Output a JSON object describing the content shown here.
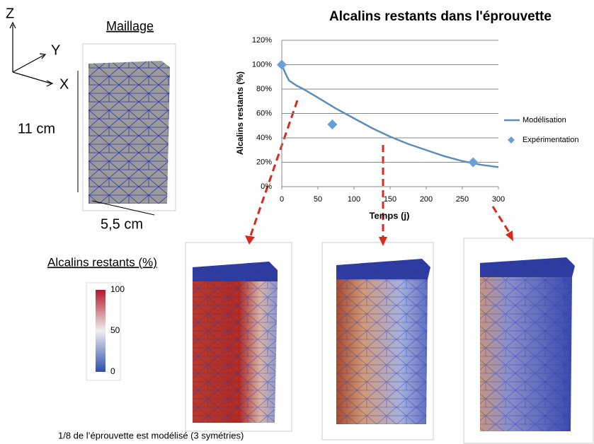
{
  "chart_data": {
    "type": "line",
    "title": "Alcalins restants dans l'éprouvette",
    "x_label": "Temps (j)",
    "y_label": "Alcalins restants (%)",
    "xlim": [
      0,
      300
    ],
    "xticks": [
      0,
      50,
      100,
      150,
      200,
      250,
      300
    ],
    "ylim": [
      0,
      120
    ],
    "yticks": [
      {
        "value": 0,
        "label": "0%"
      },
      {
        "value": 20,
        "label": "20%"
      },
      {
        "value": 40,
        "label": "40%"
      },
      {
        "value": 60,
        "label": "60%"
      },
      {
        "value": 80,
        "label": "80%"
      },
      {
        "value": 100,
        "label": "100%"
      },
      {
        "value": 120,
        "label": "120%"
      }
    ],
    "grid": true,
    "series": [
      {
        "name": "Modélisation",
        "color": "#5b8db8",
        "mode": "line",
        "x": [
          0,
          5,
          10,
          20,
          30,
          50,
          75,
          100,
          125,
          150,
          175,
          200,
          225,
          250,
          275,
          300
        ],
        "values": [
          100,
          93,
          87,
          83,
          80,
          73,
          64,
          56,
          48,
          41,
          35,
          30,
          25,
          21,
          18,
          16
        ]
      },
      {
        "name": "Expérimentation",
        "color": "#6a9fd4",
        "mode": "markers",
        "x": [
          0,
          70,
          265
        ],
        "values": [
          100,
          51,
          20
        ]
      }
    ]
  },
  "labels": {
    "axis_z": "Z",
    "axis_y": "Y",
    "axis_x": "X",
    "mesh_title": "Maillage",
    "height": "11 cm",
    "width": "5,5 cm",
    "colorbar_title": "Alcalins restants (%)",
    "colorbar_ticks": [
      "100",
      "50",
      "0"
    ],
    "footnote": "1/8 de l’éprouvette est modélisé (3 symétries)"
  }
}
